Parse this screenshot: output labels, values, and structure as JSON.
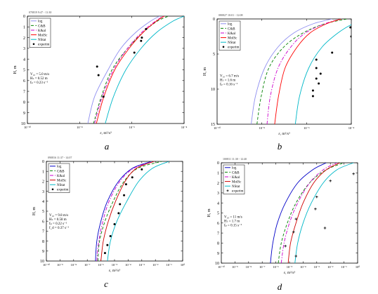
{
  "figure": {
    "panel_letters": [
      "a",
      "b",
      "c",
      "d"
    ]
  },
  "chart_data": [
    {
      "type": "line",
      "panel": "a",
      "header": "070819 9:47 - 11:30",
      "xlabel": "ε, m²/s³",
      "ylabel": "H, m",
      "x_scale": "log",
      "xlim": [
        1e-10,
        0.001
      ],
      "ylim": [
        10,
        0
      ],
      "x_tick_labels": [
        "10⁻¹⁰",
        "10⁻⁸",
        "10⁻⁶",
        "10⁻⁴"
      ],
      "y_ticks": [
        0,
        1,
        2,
        3,
        4,
        5,
        6,
        7,
        8,
        9,
        10
      ],
      "legend_position": "top-left",
      "params": [
        "V₁₀ = 5.0 m/s",
        "Hₛ = 0.52 m",
        "fₚ = 0.23 s⁻¹"
      ],
      "series": [
        {
          "name": "log",
          "color": "#8f8ff0",
          "dash": "solid",
          "x": [
            5e-08,
            1e-07,
            4e-07,
            1.5e-06,
            7e-06,
            3e-05,
            8e-05
          ],
          "y": [
            10,
            7.5,
            5,
            3,
            1.5,
            0.5,
            0
          ]
        },
        {
          "name": "C&B",
          "color": "#008000",
          "dash": "dash",
          "x": [
            9e-08,
            2e-07,
            6e-07,
            3e-06,
            1.5e-05,
            6e-05,
            0.0002
          ],
          "y": [
            10,
            7.5,
            5,
            3,
            1.5,
            0.5,
            0
          ]
        },
        {
          "name": "K&al",
          "color": "#cc00cc",
          "dash": "dashdot",
          "x": [
            1e-07,
            2.2e-07,
            7e-07,
            3e-06,
            1.3e-05,
            5e-05,
            0.00012
          ],
          "y": [
            10,
            7.5,
            5,
            3,
            1.5,
            0.5,
            0
          ]
        },
        {
          "name": "MolSc",
          "color": "#ff0000",
          "dash": "solid",
          "x": [
            1.2e-07,
            2.6e-07,
            8e-07,
            3.5e-06,
            1.5e-05,
            5.5e-05,
            0.00013
          ],
          "y": [
            10,
            7.5,
            5,
            3,
            1.5,
            0.5,
            0
          ]
        },
        {
          "name": "NStat",
          "color": "#00b8c8",
          "dash": "solid",
          "x": [
            3e-07,
            7e-07,
            2.5e-06,
            1.2e-05,
            6e-05,
            0.0003,
            0.001
          ],
          "y": [
            10,
            7.5,
            5,
            3,
            1.5,
            0.5,
            0
          ]
        },
        {
          "name": "experim",
          "color": "#000000",
          "marker": "dot",
          "x": [
            2e-05,
            1.3e-05,
            1.2e-05,
            6e-06,
            1.3e-07,
            1.5e-07,
            2.5e-07
          ],
          "y": [
            1.2,
            2.0,
            2.3,
            3.4,
            4.7,
            5.5,
            7.5
          ]
        }
      ]
    },
    {
      "type": "line",
      "panel": "b",
      "header": "080827 10:01 - 12:08",
      "xlabel": "ε, m²/s³",
      "ylabel": "H, m",
      "x_scale": "log",
      "xlim": [
        1e-10,
        0.001
      ],
      "ylim": [
        15,
        0
      ],
      "x_tick_labels": [
        "10⁻¹⁰",
        "10⁻⁸",
        "10⁻⁶",
        "10⁻⁴"
      ],
      "y_ticks": [
        0,
        5,
        10,
        15
      ],
      "legend_position": "top-left",
      "params": [
        "V₁₀ = 6.7 m/s",
        "Hₛ = 1.6 m",
        "fₚ = 0.16 s⁻¹"
      ],
      "series": [
        {
          "name": "log",
          "color": "#8f8ff0",
          "dash": "solid",
          "x": [
            6e-09,
            1e-08,
            3e-08,
            1.5e-07,
            1e-06,
            1e-05,
            0.0001
          ],
          "y": [
            15,
            11,
            7,
            4,
            2,
            0.7,
            0
          ]
        },
        {
          "name": "C&B",
          "color": "#008000",
          "dash": "dash",
          "x": [
            1.2e-08,
            2e-08,
            5e-08,
            3e-07,
            3e-06,
            4e-05,
            0.0006
          ],
          "y": [
            15,
            11,
            7,
            4,
            2,
            0.7,
            0
          ]
        },
        {
          "name": "K&al",
          "color": "#cc00cc",
          "dash": "dashdot",
          "x": [
            4e-08,
            6e-08,
            1.5e-07,
            7e-07,
            4e-06,
            4e-05,
            0.0003
          ],
          "y": [
            15,
            11,
            7,
            4,
            2,
            0.7,
            0
          ]
        },
        {
          "name": "MolSc",
          "color": "#ff0000",
          "dash": "solid",
          "x": [
            1e-07,
            1.6e-07,
            3.5e-07,
            1.5e-06,
            7e-06,
            5e-05,
            0.0003
          ],
          "y": [
            15,
            11,
            7,
            4,
            2,
            0.7,
            0
          ]
        },
        {
          "name": "NStat",
          "color": "#00b8c8",
          "dash": "solid",
          "x": [
            1.2e-06,
            2e-06,
            6e-06,
            3e-05,
            0.0002,
            0.0012,
            0.006
          ],
          "y": [
            15,
            11,
            7,
            4,
            2,
            0.7,
            0
          ]
        },
        {
          "name": "experim",
          "color": "#000000",
          "marker": "dot",
          "x": [
            0.0009,
            0.001,
            0.0001,
            1.5e-05,
            1.5e-05,
            2.5e-05,
            1.5e-05,
            2e-05,
            1e-05,
            1e-05
          ],
          "y": [
            1.2,
            2.5,
            4.8,
            5.8,
            7.0,
            7.8,
            8.5,
            9.2,
            10.2,
            11.0
          ]
        }
      ]
    },
    {
      "type": "line",
      "panel": "c",
      "header": "090816 11:37 - 14:07",
      "xlabel": "ε, m²/s³",
      "ylabel": "H, m",
      "x_scale": "log",
      "xlim": [
        1e-10,
        1
      ],
      "ylim": [
        10,
        0
      ],
      "x_tick_labels": [
        "10⁻¹⁰",
        "10⁻⁹",
        "10⁻⁸",
        "10⁻⁷",
        "10⁻⁶",
        "10⁻⁵",
        "10⁻⁴",
        "10⁻³",
        "10⁻²",
        "10⁻¹",
        "10⁰"
      ],
      "y_ticks": [
        0,
        1,
        2,
        3,
        4,
        5,
        6,
        7,
        8,
        9,
        10
      ],
      "legend_position": "top-left",
      "params": [
        "V₁₀ = 9.8 m/s",
        "Hₛ = 0.58 m",
        "fₚ = 0.22 s⁻¹",
        "f_d = 0.37 s⁻¹"
      ],
      "series": [
        {
          "name": "log",
          "color": "#0000c8",
          "dash": "solid",
          "x": [
            4e-07,
            5e-07,
            1e-06,
            3e-06,
            2e-05,
            0.0002,
            0.005
          ],
          "y": [
            10,
            8,
            6,
            4,
            2,
            0.7,
            0
          ]
        },
        {
          "name": "C&B",
          "color": "#008000",
          "dash": "dash",
          "x": [
            6e-07,
            8e-07,
            2e-06,
            8e-06,
            5e-05,
            0.0005,
            0.03
          ],
          "y": [
            10,
            8,
            6,
            4,
            2,
            0.7,
            0
          ]
        },
        {
          "name": "K&al",
          "color": "#cc00cc",
          "dash": "dashdot",
          "x": [
            5e-07,
            7e-07,
            1.4e-06,
            4e-06,
            2.5e-05,
            0.00025,
            0.008
          ],
          "y": [
            10,
            8,
            6,
            4,
            2,
            0.7,
            0
          ]
        },
        {
          "name": "MolSc",
          "color": "#d00000",
          "dash": "solid",
          "x": [
            1e-06,
            1.5e-06,
            3.5e-06,
            1.2e-05,
            6e-05,
            0.0004,
            0.008
          ],
          "y": [
            10,
            8,
            6,
            4,
            2,
            0.7,
            0
          ]
        },
        {
          "name": "NStat",
          "color": "#00b8c8",
          "dash": "solid",
          "x": [
            3e-06,
            5e-06,
            1.5e-05,
            8e-05,
            0.0006,
            0.006,
            0.1
          ],
          "y": [
            10,
            8,
            6,
            4,
            2,
            0.7,
            0
          ]
        },
        {
          "name": "experim",
          "color": "#000000",
          "marker": "dot",
          "x": [
            0.001,
            0.0002,
            7e-05,
            5e-05,
            2.5e-05,
            2e-05,
            1e-05,
            5e-06,
            3e-06,
            2e-06
          ],
          "y": [
            0.8,
            1.6,
            2.3,
            3.4,
            4.3,
            5.2,
            6.3,
            7.5,
            8.4,
            9.2
          ]
        }
      ]
    },
    {
      "type": "line",
      "panel": "d",
      "header": "100811 11:30 - 12:40",
      "xlabel": "ε, m²/s³",
      "ylabel": "H, m",
      "x_scale": "log",
      "xlim": [
        1e-10,
        1
      ],
      "ylim": [
        10,
        0
      ],
      "x_tick_labels": [
        "10⁻¹⁰",
        "10⁻⁹",
        "10⁻⁸",
        "10⁻⁷",
        "10⁻⁶",
        "10⁻⁵",
        "10⁻⁴",
        "10⁻³",
        "10⁻²",
        "10⁻¹",
        "10⁰"
      ],
      "y_ticks": [
        0,
        1,
        2,
        3,
        4,
        5,
        6,
        7,
        8,
        9,
        10
      ],
      "legend_position": "top-left",
      "params": [
        "V₁₀ = 11 m/s",
        "Hₛ = 1.7 m",
        "fₚ = 0.15 s⁻¹"
      ],
      "series": [
        {
          "name": "log",
          "color": "#0000c8",
          "dash": "solid",
          "x": [
            4e-07,
            6e-07,
            1.3e-06,
            5e-06,
            4e-05,
            0.0005,
            0.005
          ],
          "y": [
            10,
            8,
            6,
            4,
            2,
            0.7,
            0
          ]
        },
        {
          "name": "C&B",
          "color": "#008000",
          "dash": "dash",
          "x": [
            1.5e-06,
            2.5e-06,
            7e-06,
            3e-05,
            0.0003,
            0.005,
            0.1
          ],
          "y": [
            10,
            8,
            6,
            4,
            2,
            0.7,
            0
          ]
        },
        {
          "name": "K&al",
          "color": "#cc00cc",
          "dash": "dashdot",
          "x": [
            2.5e-06,
            4e-06,
            1e-05,
            4e-05,
            0.0003,
            0.003,
            0.03
          ],
          "y": [
            10,
            8,
            6,
            4,
            2,
            0.7,
            0
          ]
        },
        {
          "name": "MolSc",
          "color": "#d00000",
          "dash": "solid",
          "x": [
            8e-06,
            1.2e-05,
            3e-05,
            0.0001,
            0.0006,
            0.005,
            0.05
          ],
          "y": [
            10,
            8,
            6,
            4,
            2,
            0.7,
            0
          ]
        },
        {
          "name": "NStat",
          "color": "#00b8c8",
          "dash": "solid",
          "x": [
            2.5e-05,
            4e-05,
            0.0001,
            0.0004,
            0.003,
            0.03,
            0.5
          ],
          "y": [
            10,
            8,
            6,
            4,
            2,
            0.7,
            0
          ]
        },
        {
          "name": "experim",
          "color": "#000000",
          "marker": "plus",
          "x": [
            0.5,
            0.01,
            0.001,
            0.0008,
            3e-05,
            0.004,
            2e-05,
            5e-06,
            3e-05
          ],
          "y": [
            1.1,
            1.8,
            3.4,
            4.6,
            5.6,
            6.5,
            6.9,
            8.3,
            9.3
          ]
        }
      ]
    }
  ]
}
